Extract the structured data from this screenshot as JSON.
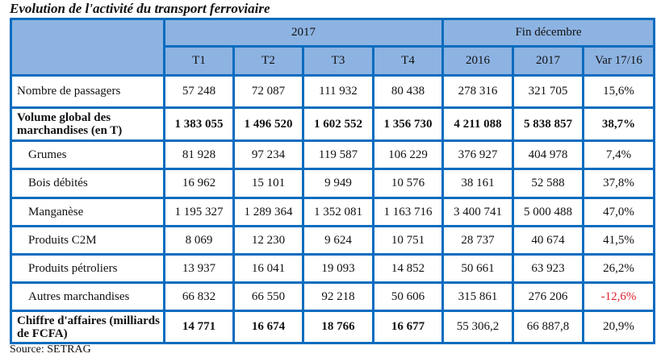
{
  "title": "Evolution de l'activité du transport ferroviaire",
  "header": {
    "group_2017": "2017",
    "group_fin": "Fin décembre",
    "columns": [
      "T1",
      "T2",
      "T3",
      "T4",
      "2016",
      "2017",
      "Var 17/16"
    ]
  },
  "rows": [
    {
      "label": "Nombre de passagers",
      "values": [
        "57 248",
        "72 087",
        "111 932",
        "80 438",
        "278 316",
        "321 705",
        "15,6%"
      ]
    },
    {
      "label": "Volume global des marchandises (en T)",
      "values": [
        "1 383 055",
        "1 496 520",
        "1 602 552",
        "1 356 730",
        "4 211 088",
        "5 838 857",
        "38,7%"
      ]
    },
    {
      "label": "Grumes",
      "values": [
        "81 928",
        "97 234",
        "119 587",
        "106 229",
        "376 927",
        "404 978",
        "7,4%"
      ]
    },
    {
      "label": "Bois débités",
      "values": [
        "16 962",
        "15 101",
        "9 949",
        "10 576",
        "38 161",
        "52 588",
        "37,8%"
      ]
    },
    {
      "label": "Manganèse",
      "values": [
        "1 195 327",
        "1 289 364",
        "1 352 081",
        "1 163 716",
        "3 400 741",
        "5 000 488",
        "47,0%"
      ]
    },
    {
      "label": "Produits C2M",
      "values": [
        "8 069",
        "12 230",
        "9 624",
        "10 751",
        "28 737",
        "40 674",
        "41,5%"
      ]
    },
    {
      "label": "Produits pétroliers",
      "values": [
        "13 937",
        "16 041",
        "19 093",
        "14 852",
        "50 661",
        "63 923",
        "26,2%"
      ]
    },
    {
      "label": "Autres marchandises",
      "values": [
        "66 832",
        "66 550",
        "92 218",
        "50 606",
        "315 861",
        "276 206",
        "-12,6%"
      ]
    },
    {
      "label": "Chiffre d'affaires (milliards de FCFA)",
      "values": [
        "14 771",
        "16 674",
        "18 766",
        "16 677",
        "55 306,2",
        "66 887,8",
        "20,9%"
      ]
    }
  ],
  "source": "Source: SETRAG",
  "colors": {
    "border": "#0a6cbf",
    "header_fill": "#8db3e2",
    "negative": "#e0202a"
  }
}
